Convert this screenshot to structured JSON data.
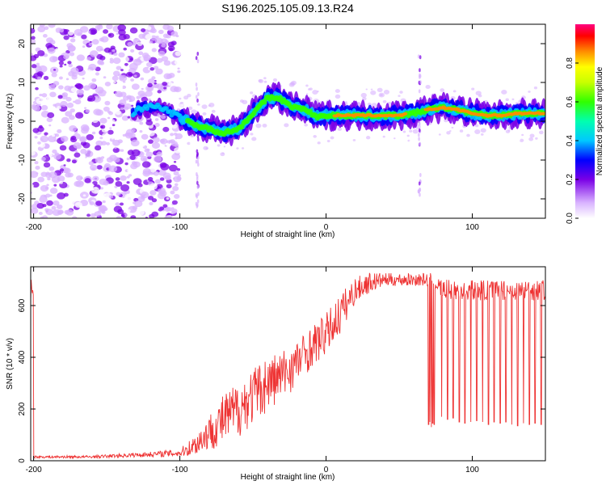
{
  "title": "S196.2025.105.09.13.R24",
  "chart_data": [
    {
      "type": "heatmap",
      "xlabel": "Height of straight line (km)",
      "ylabel": "Frequency (Hz)",
      "xlim": [
        -202,
        150
      ],
      "ylim": [
        -25,
        25
      ],
      "xticks": [
        -200,
        -100,
        0,
        100
      ],
      "yticks": [
        -20,
        -10,
        0,
        10,
        20
      ],
      "grid": false,
      "colorbar": {
        "label": "Normalized spectral amplitude",
        "range": [
          0,
          1
        ],
        "ticks": [
          "0.0",
          "0.2",
          "0.4",
          "0.6",
          "0.8"
        ]
      },
      "ridge": {
        "x": [
          -130,
          -115,
          -100,
          -90,
          -80,
          -70,
          -60,
          -50,
          -40,
          -32,
          -25,
          -15,
          -5,
          0,
          10,
          20,
          30,
          40,
          50,
          60,
          70,
          80,
          90,
          100,
          110,
          120,
          130,
          140,
          150
        ],
        "y": [
          3,
          4,
          1,
          -1,
          -2,
          -3,
          -2,
          2,
          6,
          6,
          4,
          3,
          1,
          1.5,
          1.5,
          1.5,
          1.5,
          1.5,
          1.5,
          2,
          3,
          3.5,
          3,
          2,
          1.5,
          1.5,
          2,
          2,
          2
        ]
      },
      "vertical_streaks": [
        -88,
        64
      ]
    },
    {
      "type": "line",
      "xlabel": "Height of straight line (km)",
      "ylabel": "SNR (10 * v/v)",
      "xlim": [
        -202,
        150
      ],
      "ylim": [
        0,
        750
      ],
      "xticks": [
        -200,
        -100,
        0,
        100
      ],
      "yticks": [
        0,
        200,
        400,
        600
      ],
      "grid": false,
      "color": "#ee3333",
      "series": [
        {
          "x": [
            -200,
            -180,
            -160,
            -140,
            -120,
            -100,
            -90,
            -80,
            -70,
            -60,
            -50,
            -40,
            -30,
            -20,
            -10,
            0,
            10,
            20,
            30,
            40,
            50,
            60,
            68,
            72,
            80,
            90,
            100,
            110,
            120,
            130,
            140,
            150
          ],
          "y": [
            15,
            15,
            15,
            20,
            25,
            30,
            60,
            110,
            160,
            200,
            250,
            300,
            330,
            380,
            440,
            490,
            570,
            660,
            690,
            700,
            700,
            700,
            700,
            700,
            660,
            660,
            660,
            660,
            660,
            660,
            660,
            660
          ],
          "noise": [
            5,
            5,
            5,
            8,
            10,
            15,
            40,
            70,
            100,
            110,
            110,
            110,
            100,
            90,
            80,
            80,
            80,
            50,
            40,
            25,
            25,
            25,
            25,
            25,
            40,
            40,
            40,
            40,
            40,
            40,
            40,
            40
          ]
        }
      ],
      "dropouts": {
        "x": [
          70,
          71,
          72,
          73,
          74,
          79,
          83,
          87,
          91,
          95,
          99,
          103,
          107,
          111,
          115,
          119,
          123,
          127,
          131,
          135,
          139,
          143,
          147
        ],
        "y": [
          140,
          150,
          130,
          145,
          140,
          170,
          160,
          165,
          150,
          145,
          150,
          155,
          150,
          140,
          150,
          145,
          150,
          140,
          135,
          145,
          140,
          145,
          140
        ]
      }
    }
  ]
}
